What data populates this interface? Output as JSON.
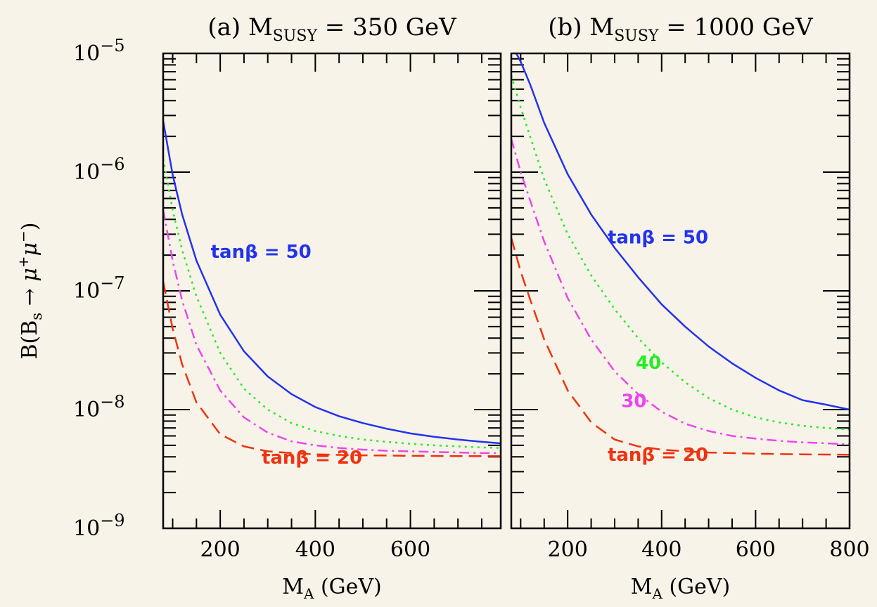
{
  "chart_data": [
    {
      "type": "line",
      "title": {
        "prefix": "(a) M",
        "sub": "SUSY",
        "suffix": " = 350 GeV"
      },
      "xlabel": {
        "main": "M",
        "sub": "A",
        "suffix": " (GeV)"
      },
      "ylabel": "B(B_s → μ⁺μ⁻)",
      "y_scale": "log",
      "xlim": [
        80,
        790
      ],
      "ylim": [
        1e-09,
        1e-05
      ],
      "xticks": [
        "200",
        "400",
        "600"
      ],
      "yticks": [
        {
          "base": "10",
          "exp": "−5"
        },
        {
          "base": "10",
          "exp": "−6"
        },
        {
          "base": "10",
          "exp": "−7"
        },
        {
          "base": "10",
          "exp": "−8"
        },
        {
          "base": "10",
          "exp": "−9"
        }
      ],
      "series": [
        {
          "name": "tanβ = 50",
          "color": "#2233ee",
          "dash": "solid",
          "x": [
            80,
            100,
            120,
            150,
            200,
            250,
            300,
            350,
            400,
            450,
            500,
            550,
            600,
            650,
            700,
            750,
            790
          ],
          "y": [
            2.7e-06,
            9.5e-07,
            4.4e-07,
            1.8e-07,
            6.3e-08,
            3.1e-08,
            1.9e-08,
            1.35e-08,
            1.05e-08,
            8.8e-09,
            7.7e-09,
            6.9e-09,
            6.3e-09,
            5.9e-09,
            5.6e-09,
            5.35e-09,
            5.2e-09
          ]
        },
        {
          "name": "tanβ = 40",
          "color": "#22ee22",
          "dash": "dotted",
          "x": [
            80,
            100,
            120,
            150,
            200,
            250,
            300,
            350,
            400,
            450,
            500,
            550,
            600,
            650,
            700,
            750,
            790
          ],
          "y": [
            1.3e-06,
            4.8e-07,
            2.2e-07,
            9e-08,
            3e-08,
            1.5e-08,
            1e-08,
            7.7e-09,
            6.6e-09,
            6e-09,
            5.6e-09,
            5.35e-09,
            5.15e-09,
            5e-09,
            4.9e-09,
            4.8e-09,
            4.75e-09
          ]
        },
        {
          "name": "tanβ = 30",
          "color": "#ee44ee",
          "dash": "dashdot",
          "x": [
            80,
            100,
            120,
            150,
            200,
            250,
            300,
            350,
            400,
            450,
            500,
            550,
            600,
            650,
            700,
            750,
            790
          ],
          "y": [
            4.8e-07,
            1.8e-07,
            8.3e-08,
            3.5e-08,
            1.45e-08,
            8.6e-09,
            6.4e-09,
            5.4e-09,
            5e-09,
            4.75e-09,
            4.6e-09,
            4.5e-09,
            4.45e-09,
            4.4e-09,
            4.35e-09,
            4.3e-09,
            4.3e-09
          ]
        },
        {
          "name": "tanβ = 20",
          "color": "#ee3311",
          "dash": "dashed",
          "x": [
            80,
            100,
            120,
            150,
            200,
            250,
            300,
            350,
            400,
            450,
            500,
            550,
            600,
            650,
            700,
            750,
            790
          ],
          "y": [
            1.2e-07,
            4.8e-08,
            2.4e-08,
            1.15e-08,
            6.2e-09,
            4.9e-09,
            4.45e-09,
            4.3e-09,
            4.2e-09,
            4.15e-09,
            4.12e-09,
            4.1e-09,
            4.08e-09,
            4.07e-09,
            4.06e-09,
            4.05e-09,
            4.05e-09
          ]
        }
      ],
      "annotations": [
        {
          "text": "tanβ = 50",
          "color": "#2233ee",
          "x": 180,
          "y": 1.9e-07
        },
        {
          "text": "tanβ = 20",
          "color": "#ee3311",
          "x": 287,
          "y": 3.5e-09
        }
      ]
    },
    {
      "type": "line",
      "title": {
        "prefix": "(b) M",
        "sub": "SUSY",
        "suffix": " = 1000 GeV"
      },
      "xlabel": {
        "main": "M",
        "sub": "A",
        "suffix": " (GeV)"
      },
      "ylabel": "B(B_s → μ⁺μ⁻)",
      "y_scale": "log",
      "xlim": [
        80,
        800
      ],
      "ylim": [
        1e-09,
        1e-05
      ],
      "xticks": [
        "200",
        "400",
        "600",
        "800"
      ],
      "series": [
        {
          "name": "tanβ = 50",
          "color": "#2233ee",
          "dash": "solid",
          "x": [
            80,
            100,
            120,
            150,
            200,
            250,
            300,
            350,
            400,
            450,
            500,
            550,
            600,
            650,
            700,
            750,
            800
          ],
          "y": [
            1.2e-05,
            8.5e-06,
            5.5e-06,
            2.6e-06,
            9.6e-07,
            4.4e-07,
            2.3e-07,
            1.3e-07,
            7.7e-08,
            5e-08,
            3.4e-08,
            2.45e-08,
            1.85e-08,
            1.45e-08,
            1.2e-08,
            1.1e-08,
            1e-08
          ]
        },
        {
          "name": "tanβ = 40",
          "color": "#22ee22",
          "dash": "dotted",
          "x": [
            80,
            100,
            120,
            150,
            200,
            250,
            300,
            350,
            400,
            450,
            500,
            550,
            600,
            650,
            700,
            750,
            800
          ],
          "y": [
            6.5e-06,
            3.5e-06,
            2e-06,
            8.7e-07,
            3e-07,
            1.35e-07,
            7e-08,
            4e-08,
            2.5e-08,
            1.7e-08,
            1.25e-08,
            1e-08,
            8.6e-09,
            7.8e-09,
            7.3e-09,
            7e-09,
            6.8e-09
          ]
        },
        {
          "name": "tanβ = 30",
          "color": "#ee44ee",
          "dash": "dashdot",
          "x": [
            80,
            100,
            120,
            150,
            200,
            250,
            300,
            350,
            400,
            450,
            500,
            550,
            600,
            650,
            700,
            750,
            800
          ],
          "y": [
            1.9e-06,
            1e-06,
            5.8e-07,
            2.6e-07,
            8.7e-08,
            3.9e-08,
            2.1e-08,
            1.35e-08,
            9.6e-09,
            7.6e-09,
            6.6e-09,
            6e-09,
            5.7e-09,
            5.45e-09,
            5.3e-09,
            5.2e-09,
            5.1e-09
          ]
        },
        {
          "name": "tanβ = 20",
          "color": "#ee3311",
          "dash": "dashed",
          "x": [
            80,
            100,
            120,
            150,
            200,
            250,
            300,
            350,
            400,
            450,
            500,
            550,
            600,
            650,
            700,
            750,
            800
          ],
          "y": [
            2.8e-07,
            1.45e-07,
            8.5e-08,
            3.9e-08,
            1.45e-08,
            7.8e-09,
            5.6e-09,
            4.9e-09,
            4.6e-09,
            4.45e-09,
            4.35e-09,
            4.3e-09,
            4.25e-09,
            4.22e-09,
            4.2e-09,
            4.18e-09,
            4.17e-09
          ]
        }
      ],
      "annotations": [
        {
          "text": "tanβ = 50",
          "color": "#2233ee",
          "x": 285,
          "y": 2.5e-07
        },
        {
          "text": "40",
          "color": "#22ee22",
          "x": 345,
          "y": 2.2e-08
        },
        {
          "text": "30",
          "color": "#ee44ee",
          "x": 314,
          "y": 1.05e-08
        },
        {
          "text": "tanβ = 20",
          "color": "#ee3311",
          "x": 285,
          "y": 3.7e-09
        }
      ]
    }
  ]
}
